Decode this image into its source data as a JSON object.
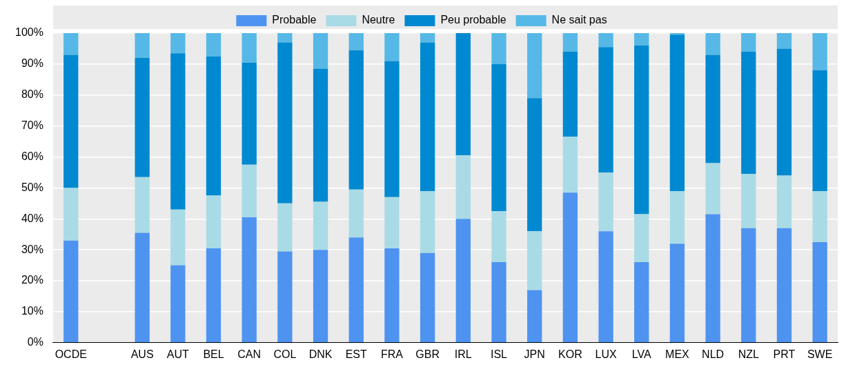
{
  "chart_data": {
    "type": "bar",
    "stacked": true,
    "categories": [
      "OCDE",
      null,
      "AUS",
      "AUT",
      "BEL",
      "CAN",
      "COL",
      "DNK",
      "EST",
      "FRA",
      "GBR",
      "IRL",
      "ISL",
      "JPN",
      "KOR",
      "LUX",
      "LVA",
      "MEX",
      "NLD",
      "NZL",
      "PRT",
      "SWE"
    ],
    "series": [
      {
        "name": "Probable",
        "color": "#4e93f0",
        "values": [
          33,
          null,
          35.5,
          25,
          30.5,
          40.5,
          29.5,
          30,
          34,
          30.5,
          29,
          40,
          26,
          17,
          48.5,
          36,
          26,
          32,
          41.5,
          37,
          37,
          32.5
        ]
      },
      {
        "name": "Neutre",
        "color": "#a9dbe6",
        "values": [
          17,
          null,
          18,
          18,
          17,
          17,
          15.5,
          15.5,
          15.5,
          16.5,
          20,
          20.5,
          16.5,
          19,
          18,
          19,
          15.5,
          17,
          16.5,
          17.5,
          17,
          16.5
        ]
      },
      {
        "name": "Peu probable",
        "color": "#0089d0",
        "values": [
          43,
          null,
          38.5,
          50.5,
          45,
          33,
          52,
          43,
          45,
          44,
          48,
          39.5,
          47.5,
          43,
          27.5,
          40.5,
          54.5,
          50.5,
          35,
          39.5,
          41,
          39
        ]
      },
      {
        "name": "Ne sait pas",
        "color": "#56b8e6",
        "values": [
          7,
          null,
          8,
          6.5,
          7.5,
          9.5,
          3,
          11.5,
          5.5,
          9,
          3,
          0,
          10,
          21,
          6,
          4.5,
          4,
          0.5,
          7,
          6,
          5,
          12
        ]
      }
    ],
    "ylim": [
      0,
      100
    ],
    "yticks": [
      {
        "value": 0,
        "label": "0%"
      },
      {
        "value": 10,
        "label": "10%"
      },
      {
        "value": 20,
        "label": "20%"
      },
      {
        "value": 30,
        "label": "30%"
      },
      {
        "value": 40,
        "label": "40%"
      },
      {
        "value": 50,
        "label": "50%"
      },
      {
        "value": 60,
        "label": "60%"
      },
      {
        "value": 70,
        "label": "70%"
      },
      {
        "value": 80,
        "label": "80%"
      },
      {
        "value": 90,
        "label": "90%"
      },
      {
        "value": 100,
        "label": "100%"
      }
    ],
    "grid": "y",
    "legend": "top"
  }
}
